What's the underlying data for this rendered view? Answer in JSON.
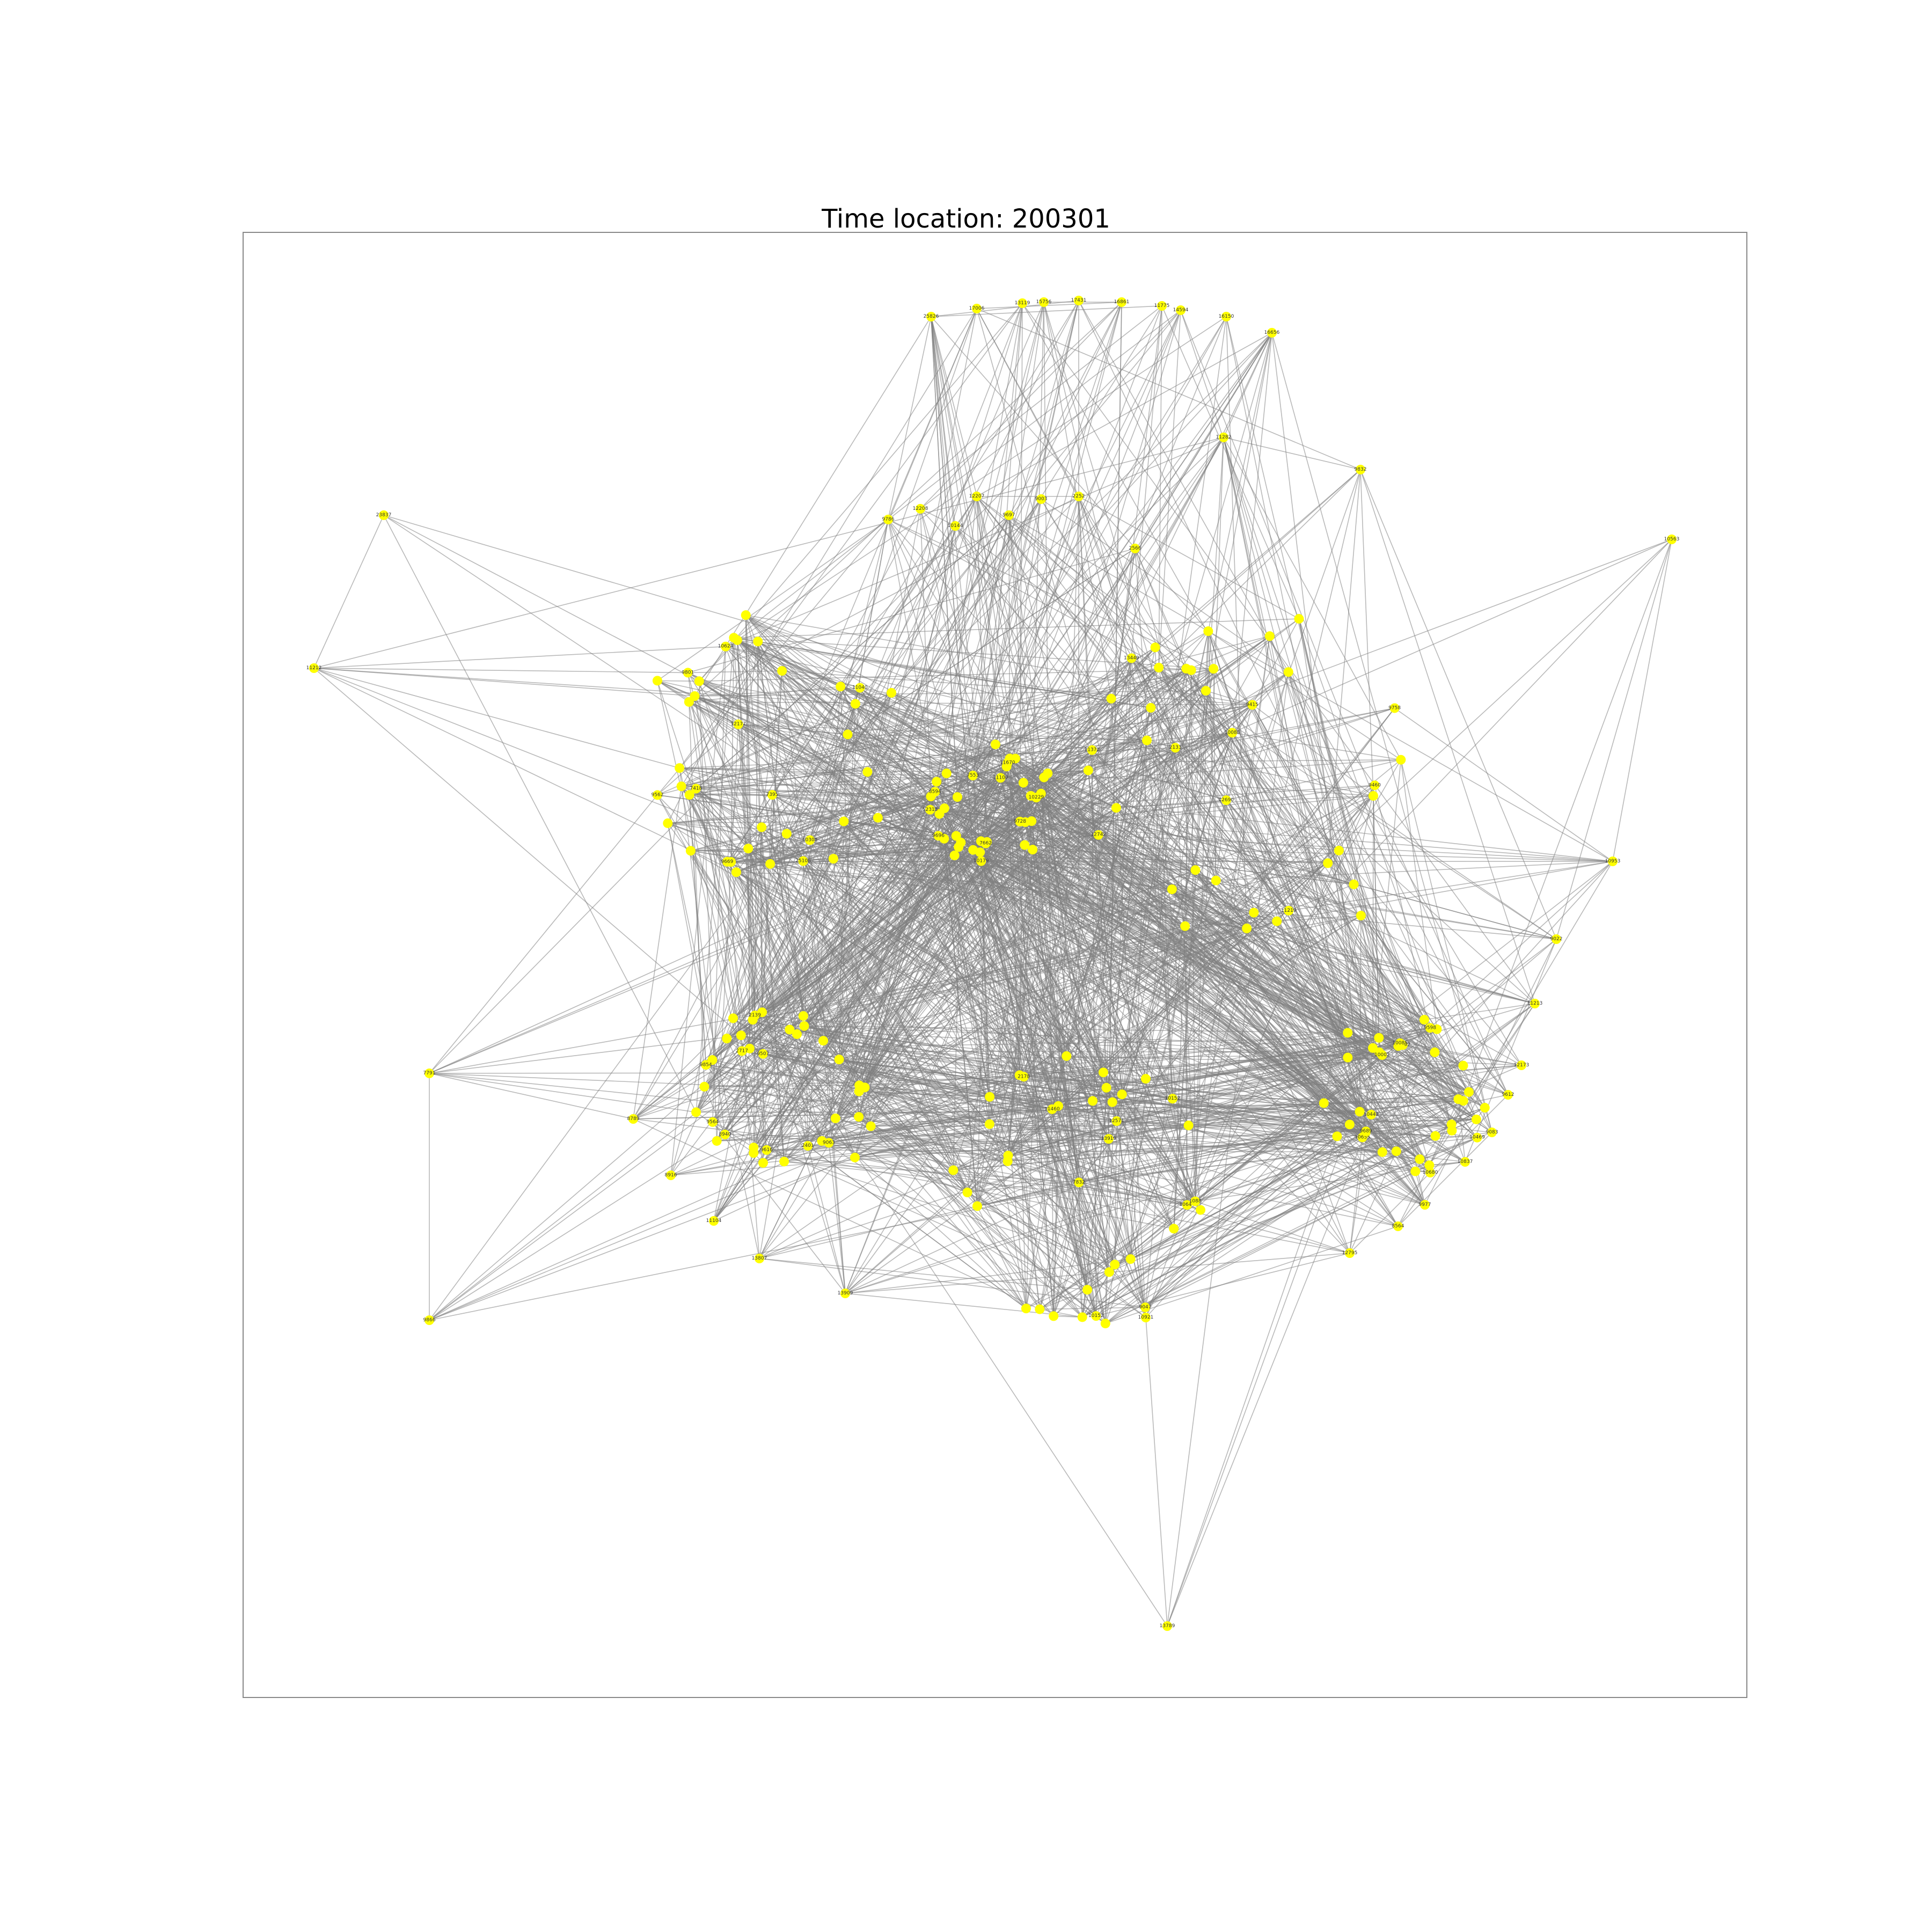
{
  "figure": {
    "title": "Time location: 200301"
  },
  "style": {
    "node_color": "#ffff00",
    "edge_color": "#808080",
    "frame_color": "#888888",
    "background": "#ffffff"
  },
  "graph": {
    "layout": "force-directed",
    "nodes": [
      {
        "id": "17006"
      },
      {
        "id": "13119"
      },
      {
        "id": "15756"
      },
      {
        "id": "17431"
      },
      {
        "id": "16861"
      },
      {
        "id": "11775"
      },
      {
        "id": "14594"
      },
      {
        "id": "16150"
      },
      {
        "id": "25826"
      },
      {
        "id": "16656"
      },
      {
        "id": "11282"
      },
      {
        "id": "9832"
      },
      {
        "id": "23837"
      },
      {
        "id": "10563"
      },
      {
        "id": "11212"
      },
      {
        "id": "12207"
      },
      {
        "id": "9003"
      },
      {
        "id": "2252"
      },
      {
        "id": "12208"
      },
      {
        "id": "9697"
      },
      {
        "id": "9786"
      },
      {
        "id": "10144"
      },
      {
        "id": "2566"
      },
      {
        "id": "7553"
      },
      {
        "id": "13449"
      },
      {
        "id": "10624"
      },
      {
        "id": "9047"
      },
      {
        "id": "2139"
      },
      {
        "id": "14302"
      },
      {
        "id": "21100"
      },
      {
        "id": "2133"
      },
      {
        "id": "25108"
      },
      {
        "id": "10152"
      },
      {
        "id": "9063"
      },
      {
        "id": "10085"
      },
      {
        "id": "7662"
      },
      {
        "id": "9758"
      },
      {
        "id": "7418"
      },
      {
        "id": "13919"
      },
      {
        "id": "2401"
      },
      {
        "id": "10655"
      },
      {
        "id": "10953"
      },
      {
        "id": "9022"
      },
      {
        "id": "11213"
      },
      {
        "id": "12173"
      },
      {
        "id": "9612"
      },
      {
        "id": "9083"
      },
      {
        "id": "10837"
      },
      {
        "id": "9977"
      },
      {
        "id": "10680"
      },
      {
        "id": "8564"
      },
      {
        "id": "12795"
      },
      {
        "id": "9866"
      },
      {
        "id": "7791"
      },
      {
        "id": "8789"
      },
      {
        "id": "8916"
      },
      {
        "id": "11104"
      },
      {
        "id": "13807"
      },
      {
        "id": "13909"
      },
      {
        "id": "10229"
      },
      {
        "id": "9415"
      },
      {
        "id": "9562"
      },
      {
        "id": "12571"
      },
      {
        "id": "13789"
      },
      {
        "id": "10921"
      },
      {
        "id": "8594"
      },
      {
        "id": "10088"
      },
      {
        "id": "12177"
      },
      {
        "id": "11460"
      },
      {
        "id": "9507"
      },
      {
        "id": "9689"
      },
      {
        "id": "9696"
      },
      {
        "id": "12690"
      },
      {
        "id": "7395"
      },
      {
        "id": "7832"
      },
      {
        "id": "9616"
      },
      {
        "id": "10442"
      },
      {
        "id": "11670"
      },
      {
        "id": "11372"
      },
      {
        "id": "9801"
      },
      {
        "id": "10644"
      },
      {
        "id": "9564"
      },
      {
        "id": "10002"
      },
      {
        "id": "12313"
      },
      {
        "id": "11219"
      },
      {
        "id": "11040"
      },
      {
        "id": "1088"
      },
      {
        "id": "2717"
      },
      {
        "id": "9598"
      },
      {
        "id": "10179"
      },
      {
        "id": "9460"
      },
      {
        "id": "10308"
      },
      {
        "id": "2178"
      },
      {
        "id": "9854"
      },
      {
        "id": "10469"
      },
      {
        "id": "9728"
      },
      {
        "id": "12742"
      },
      {
        "id": "9669"
      },
      {
        "id": "10152b"
      },
      {
        "id": "8940"
      }
    ],
    "edges_note": "dense edge set; rendered procedurally"
  }
}
